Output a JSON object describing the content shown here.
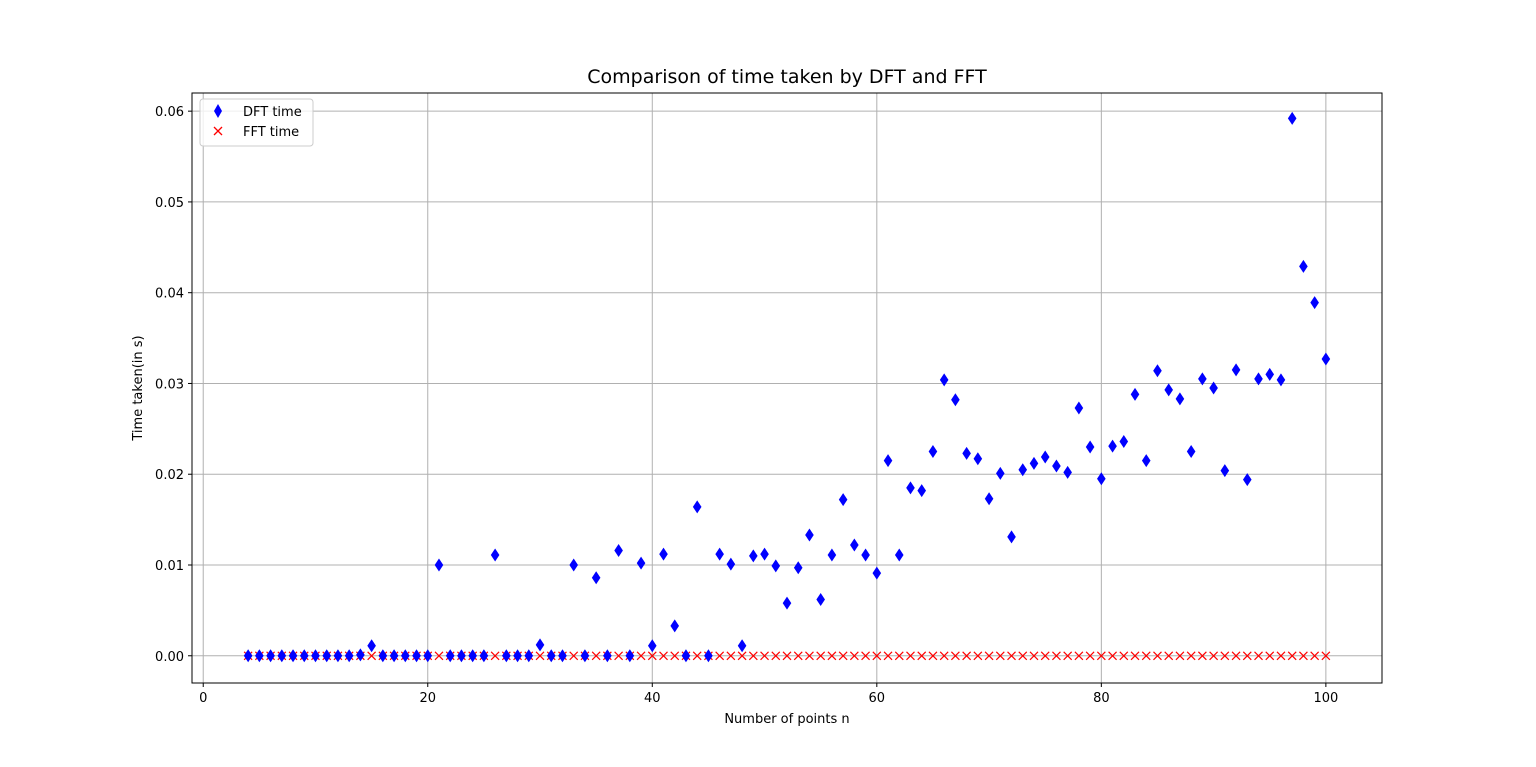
{
  "chart_data": {
    "type": "scatter",
    "title": "Comparison of time taken by DFT and FFT",
    "xlabel": "Number of points n",
    "ylabel": "Time taken(in s)",
    "xlim": [
      -1,
      105
    ],
    "ylim": [
      -0.003,
      0.062
    ],
    "xticks": [
      0,
      20,
      40,
      60,
      80,
      100
    ],
    "yticks": [
      0.0,
      0.01,
      0.02,
      0.03,
      0.04,
      0.05,
      0.06
    ],
    "xtick_labels": [
      "0",
      "20",
      "40",
      "60",
      "80",
      "100"
    ],
    "ytick_labels": [
      "0.00",
      "0.01",
      "0.02",
      "0.03",
      "0.04",
      "0.05",
      "0.06"
    ],
    "grid": true,
    "legend_position": "upper-left",
    "series": [
      {
        "name": "DFT time",
        "marker": "diamond",
        "color": "#0000ff",
        "x": [
          4,
          5,
          6,
          7,
          8,
          9,
          10,
          11,
          12,
          13,
          14,
          15,
          16,
          17,
          18,
          19,
          20,
          21,
          22,
          23,
          24,
          25,
          26,
          27,
          28,
          29,
          30,
          31,
          32,
          33,
          34,
          35,
          36,
          37,
          38,
          39,
          40,
          41,
          42,
          43,
          44,
          45,
          46,
          47,
          48,
          49,
          50,
          51,
          52,
          53,
          54,
          55,
          56,
          57,
          58,
          59,
          60,
          61,
          62,
          63,
          64,
          65,
          66,
          67,
          68,
          69,
          70,
          71,
          72,
          73,
          74,
          75,
          76,
          77,
          78,
          79,
          80,
          81,
          82,
          83,
          84,
          85,
          86,
          87,
          88,
          89,
          90,
          91,
          92,
          93,
          94,
          95,
          96,
          97,
          98,
          99,
          100
        ],
        "y": [
          0,
          0,
          0,
          0,
          0,
          0,
          0,
          0,
          0,
          0,
          0.0001,
          0.0011,
          0,
          0,
          0,
          0,
          0,
          0.01,
          0,
          0,
          0,
          0,
          0.0111,
          0,
          0,
          0,
          0.0012,
          0,
          0,
          0.01,
          0,
          0.0086,
          0,
          0.0116,
          0,
          0.0102,
          0.0011,
          0.0112,
          0.0033,
          0,
          0.0164,
          0,
          0.0112,
          0.0101,
          0.0011,
          0.011,
          0.0112,
          0.0099,
          0.0058,
          0.0097,
          0.0133,
          0.0062,
          0.0111,
          0.0172,
          0.0122,
          0.0111,
          0.0091,
          0.0215,
          0.0111,
          0.0185,
          0.0182,
          0.0225,
          0.0304,
          0.0282,
          0.0223,
          0.0217,
          0.0173,
          0.0201,
          0.0131,
          0.0205,
          0.0212,
          0.0219,
          0.0209,
          0.0202,
          0.0273,
          0.023,
          0.0195,
          0.0231,
          0.0236,
          0.0288,
          0.0215,
          0.0314,
          0.0293,
          0.0283,
          0.0225,
          0.0305,
          0.0295,
          0.0204,
          0.0315,
          0.0194,
          0.0305,
          0.031,
          0.0304,
          0.0592,
          0.0429,
          0.0389,
          0.0327
        ]
      },
      {
        "name": "FFT time",
        "marker": "x",
        "color": "#ff0000",
        "x_start": 4,
        "x_end": 100,
        "constant_y": 0
      }
    ]
  }
}
